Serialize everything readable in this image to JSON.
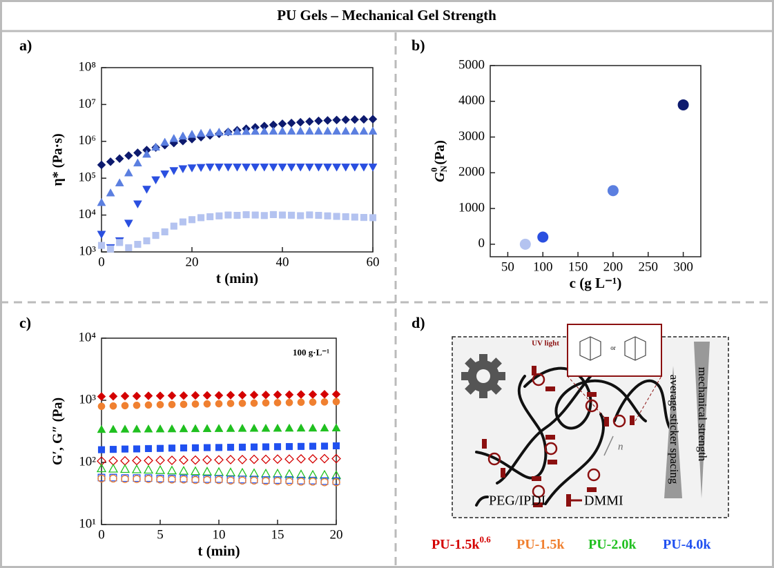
{
  "title": "PU Gels – Mechanical Gel Strength",
  "panel_labels": [
    "a)",
    "b)",
    "c)",
    "d)"
  ],
  "chart_data": [
    {
      "type": "line-scatter",
      "xlabel": "t (min)",
      "ylabel": "η* (Pa·s)",
      "log_y": true,
      "xlim": [
        0,
        60
      ],
      "xticks": [
        0,
        20,
        40,
        60
      ],
      "ylim": [
        1000,
        100000000
      ],
      "yticks": [
        {
          "value": 1000,
          "label": "10³"
        },
        {
          "value": 10000,
          "label": "10⁴"
        },
        {
          "value": 100000,
          "label": "10⁵"
        },
        {
          "value": 1000000,
          "label": "10⁶"
        },
        {
          "value": 10000000,
          "label": "10⁷"
        },
        {
          "value": 100000000,
          "label": "10⁸"
        }
      ],
      "x": [
        0,
        2,
        4,
        6,
        8,
        10,
        12,
        14,
        16,
        18,
        20,
        22,
        24,
        26,
        28,
        30,
        32,
        34,
        36,
        38,
        40,
        42,
        44,
        46,
        48,
        50,
        52,
        54,
        56,
        58,
        60
      ],
      "series": [
        {
          "color": "#0d1a6e",
          "marker": "diamond",
          "filled": true,
          "values": [
            230000,
            280000,
            340000,
            410000,
            490000,
            580000,
            680000,
            790000,
            900000,
            1020000,
            1150000,
            1300000,
            1450000,
            1600000,
            1800000,
            2000000,
            2200000,
            2400000,
            2600000,
            2800000,
            3000000,
            3150000,
            3300000,
            3450000,
            3600000,
            3700000,
            3800000,
            3850000,
            3900000,
            3950000,
            4000000
          ]
        },
        {
          "color": "#5b7fe0",
          "marker": "triangle-up",
          "filled": true,
          "values": [
            22000,
            40000,
            75000,
            140000,
            260000,
            450000,
            700000,
            950000,
            1200000,
            1400000,
            1550000,
            1650000,
            1720000,
            1780000,
            1820000,
            1850000,
            1870000,
            1880000,
            1890000,
            1900000,
            1900000,
            1900000,
            1900000,
            1900000,
            1900000,
            1900000,
            1900000,
            1900000,
            1900000,
            1900000,
            1900000
          ]
        },
        {
          "color": "#2a4fe0",
          "marker": "triangle-down",
          "filled": true,
          "values": [
            3000,
            1300,
            2000,
            6000,
            20000,
            50000,
            90000,
            130000,
            160000,
            180000,
            190000,
            195000,
            200000,
            200000,
            200000,
            200000,
            200000,
            200000,
            200000,
            200000,
            200000,
            200000,
            200000,
            200000,
            200000,
            200000,
            200000,
            200000,
            200000,
            200000,
            200000
          ]
        },
        {
          "color": "#b4c3f0",
          "marker": "square",
          "filled": true,
          "values": [
            1500,
            1200,
            1800,
            1300,
            1600,
            2000,
            2800,
            3500,
            5000,
            6500,
            7500,
            8500,
            9000,
            9500,
            10000,
            9800,
            10200,
            10000,
            9700,
            10300,
            10000,
            9900,
            9600,
            10100,
            9800,
            9500,
            9200,
            9000,
            8800,
            8600,
            8500
          ]
        }
      ]
    },
    {
      "type": "scatter",
      "xlabel": "c (g L⁻¹)",
      "ylabel": {
        "symbol": "G",
        "sub": "N",
        "sup": "0",
        "unit": "(Pa)"
      },
      "xlim": [
        25,
        325
      ],
      "xticks": [
        50,
        100,
        150,
        200,
        250,
        300
      ],
      "ylim": [
        -350,
        5000
      ],
      "yticks": [
        0,
        1000,
        2000,
        3000,
        4000,
        5000
      ],
      "x": [
        75,
        100,
        200,
        300
      ],
      "values": [
        0,
        200,
        1500,
        3900
      ],
      "point_colors": [
        "#b4c3f0",
        "#2a4fe0",
        "#5b7fe0",
        "#0d1a6e"
      ]
    },
    {
      "type": "line-scatter",
      "xlabel": "t (min)",
      "ylabel": "G′, G″ (Pa)",
      "log_y": true,
      "annotation": "100 g·L⁻¹",
      "xlim": [
        0,
        20
      ],
      "xticks": [
        0,
        5,
        10,
        15,
        20
      ],
      "ylim": [
        10,
        10000
      ],
      "yticks": [
        {
          "value": 10,
          "label": "10¹"
        },
        {
          "value": 100,
          "label": "10²"
        },
        {
          "value": 1000,
          "label": "10³"
        },
        {
          "value": 10000,
          "label": "10⁴"
        }
      ],
      "x": [
        0,
        1,
        2,
        3,
        4,
        5,
        6,
        7,
        8,
        9,
        10,
        11,
        12,
        13,
        14,
        15,
        16,
        17,
        18,
        19,
        20
      ],
      "series": [
        {
          "color": "#d40000",
          "marker": "diamond",
          "filled": true,
          "values": [
            1150,
            1160,
            1170,
            1170,
            1180,
            1180,
            1190,
            1190,
            1200,
            1200,
            1200,
            1210,
            1210,
            1220,
            1220,
            1230,
            1230,
            1240,
            1240,
            1250,
            1250
          ]
        },
        {
          "color": "#f08030",
          "marker": "circle",
          "filled": true,
          "values": [
            800,
            810,
            820,
            830,
            840,
            850,
            855,
            860,
            870,
            875,
            880,
            890,
            895,
            900,
            910,
            915,
            920,
            930,
            935,
            940,
            950
          ]
        },
        {
          "color": "#20c020",
          "marker": "triangle-up",
          "filled": true,
          "values": [
            340,
            342,
            344,
            345,
            346,
            347,
            348,
            349,
            350,
            351,
            352,
            353,
            354,
            355,
            355,
            356,
            357,
            358,
            358,
            359,
            360
          ]
        },
        {
          "color": "#2050f0",
          "marker": "square",
          "filled": true,
          "values": [
            160,
            162,
            164,
            165,
            167,
            168,
            170,
            171,
            172,
            173,
            174,
            175,
            176,
            177,
            178,
            179,
            180,
            181,
            182,
            183,
            185
          ]
        },
        {
          "color": "#d40000",
          "marker": "diamond",
          "filled": false,
          "values": [
            105,
            106,
            106,
            107,
            107,
            108,
            108,
            109,
            109,
            110,
            110,
            111,
            111,
            112,
            112,
            113,
            113,
            114,
            114,
            115,
            115
          ]
        },
        {
          "color": "#20c020",
          "marker": "triangle-up",
          "filled": false,
          "values": [
            80,
            79,
            78,
            77,
            76,
            75,
            74,
            73,
            72,
            71,
            70,
            69,
            68,
            67,
            66,
            66,
            65,
            64,
            63,
            63,
            62
          ]
        },
        {
          "color": "#2050f0",
          "marker": "square",
          "filled": false,
          "values": [
            57,
            57,
            56,
            56,
            56,
            55,
            55,
            55,
            54,
            54,
            54,
            53,
            53,
            53,
            52,
            52,
            52,
            51,
            51,
            50,
            50
          ]
        },
        {
          "color": "#f08030",
          "marker": "circle",
          "filled": false,
          "values": [
            55,
            55,
            54,
            54,
            54,
            53,
            53,
            53,
            52,
            52,
            52,
            51,
            51,
            51,
            50,
            50,
            49,
            49,
            49,
            48,
            48
          ]
        }
      ]
    }
  ],
  "panel_d": {
    "uv_light": "UV light",
    "or": "or",
    "mechanical_strength": "mechanical strength",
    "sticker_spacing": "average sticker spacing",
    "n": "n",
    "peg": "PEG/IPDI",
    "dmmi": "DMMI"
  },
  "legend": [
    {
      "label": "PU-1.5k",
      "sup": "0.6",
      "color": "#d40000"
    },
    {
      "label": "PU-1.5k",
      "color": "#f08030"
    },
    {
      "label": "PU-2.0k",
      "color": "#20c020"
    },
    {
      "label": "PU-4.0k",
      "color": "#2050f0"
    }
  ]
}
